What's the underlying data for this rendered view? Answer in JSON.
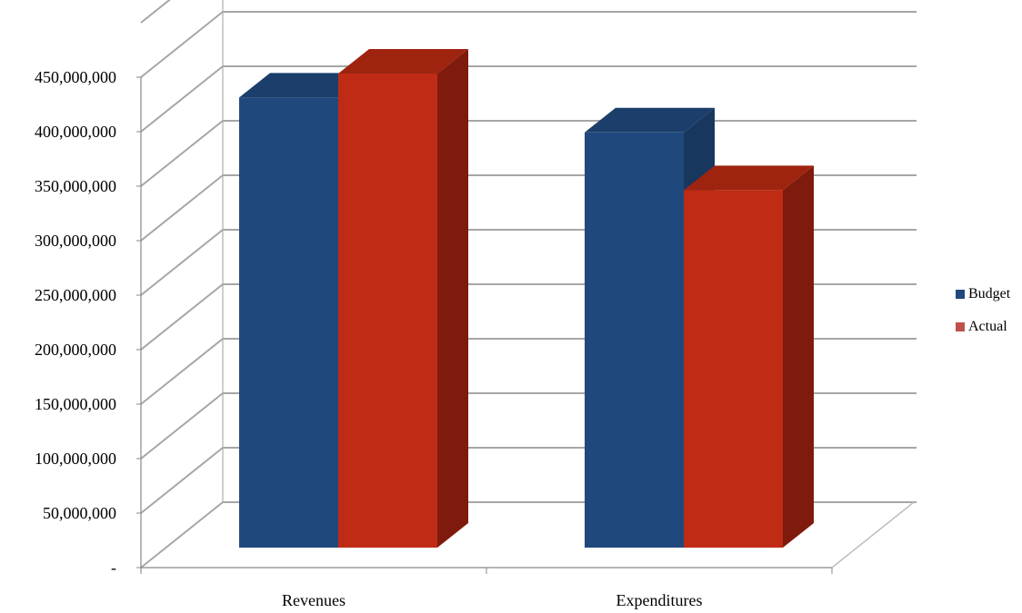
{
  "chart_data": {
    "type": "bar",
    "title": "",
    "xlabel": "",
    "ylabel": "",
    "categories": [
      "Revenues",
      "Expenditures"
    ],
    "series": [
      {
        "name": "Budget",
        "values": [
          413000000,
          381000000
        ],
        "color": "#1F497D"
      },
      {
        "name": "Actual",
        "values": [
          435000000,
          328000000
        ],
        "color": "#C0504D"
      }
    ],
    "ylim": [
      0,
      450000000
    ],
    "y_ticks": [
      {
        "value": 0,
        "label": "-"
      },
      {
        "value": 50000000,
        "label": "50,000,000"
      },
      {
        "value": 100000000,
        "label": "100,000,000"
      },
      {
        "value": 150000000,
        "label": "150,000,000"
      },
      {
        "value": 200000000,
        "label": "200,000,000"
      },
      {
        "value": 250000000,
        "label": "250,000,000"
      },
      {
        "value": 300000000,
        "label": "300,000,000"
      },
      {
        "value": 350000000,
        "label": "350,000,000"
      },
      {
        "value": 400000000,
        "label": "400,000,000"
      },
      {
        "value": 450000000,
        "label": "450,000,000"
      }
    ],
    "grid": true,
    "style": "3d-clustered-column",
    "legend_position": "right",
    "colors": {
      "budget_front": "#1F497D",
      "budget_side": "#17375E",
      "budget_top": "#1B3F6A",
      "actual_front": "#BF2B14",
      "actual_side": "#7F1B0C",
      "actual_top": "#9E2410",
      "grid": "#A6A6A6"
    }
  }
}
